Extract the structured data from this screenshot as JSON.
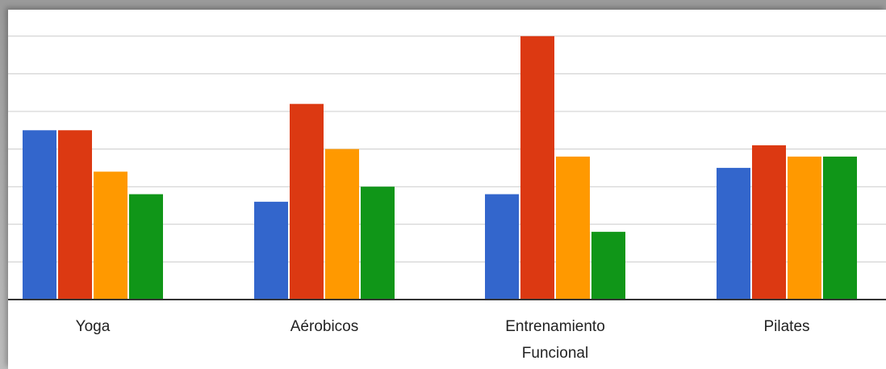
{
  "chart_data": {
    "type": "bar",
    "categories": [
      "Yoga",
      "Aérobicos",
      "Entrenamiento Funcional",
      "Pilates"
    ],
    "category_label_lines": [
      [
        "Yoga"
      ],
      [
        "Aérobicos"
      ],
      [
        "Entrenamiento",
        "Funcional"
      ],
      [
        "Pilates"
      ]
    ],
    "series": [
      {
        "color": "#3366cc",
        "values": [
          4.5,
          2.6,
          2.8,
          3.5
        ]
      },
      {
        "color": "#dc3912",
        "values": [
          4.5,
          5.2,
          7.0,
          4.1
        ]
      },
      {
        "color": "#ff9900",
        "values": [
          3.4,
          4.0,
          3.8,
          3.8
        ]
      },
      {
        "color": "#109618",
        "values": [
          2.8,
          3.0,
          1.8,
          3.8
        ]
      }
    ],
    "ylim": [
      0,
      7
    ],
    "grid": true,
    "title": "",
    "xlabel": "",
    "ylabel": ""
  }
}
